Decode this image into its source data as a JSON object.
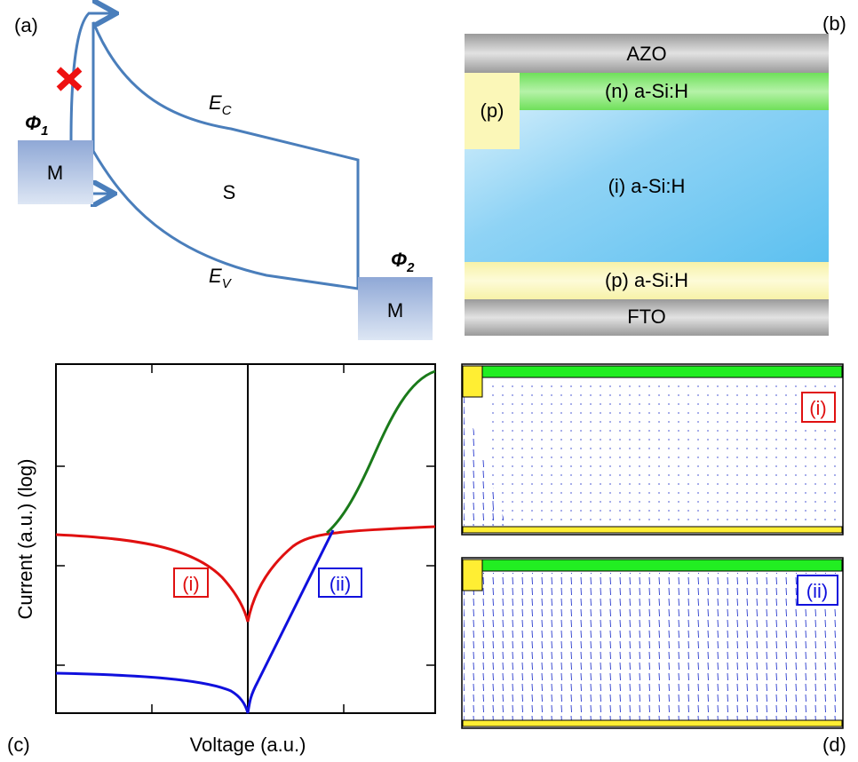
{
  "panel_a": {
    "label": "(a)",
    "phi1": {
      "symbol": "Φ",
      "subscript": "1"
    },
    "metal_left": "M",
    "semiconductor": "S",
    "conduction_band": {
      "symbol": "E",
      "subscript": "C"
    },
    "valence_band": {
      "symbol": "E",
      "subscript": "V"
    },
    "phi2": {
      "symbol": "Φ",
      "subscript": "2"
    },
    "metal_right": "M"
  },
  "panel_b": {
    "label": "(b)",
    "layers": [
      "AZO",
      "(n) a-Si:H",
      "(p)",
      "(i) a-Si:H",
      "(p) a-Si:H",
      "FTO"
    ]
  },
  "panel_c": {
    "label": "(c)",
    "y_axis_label": "Current (a.u.) (log)",
    "x_axis_label": "Voltage (a.u.)",
    "curve_labels": [
      "(i)",
      "(ii)"
    ]
  },
  "panel_d": {
    "label": "(d)",
    "plot_labels": [
      "(i)",
      "(ii)"
    ]
  }
}
